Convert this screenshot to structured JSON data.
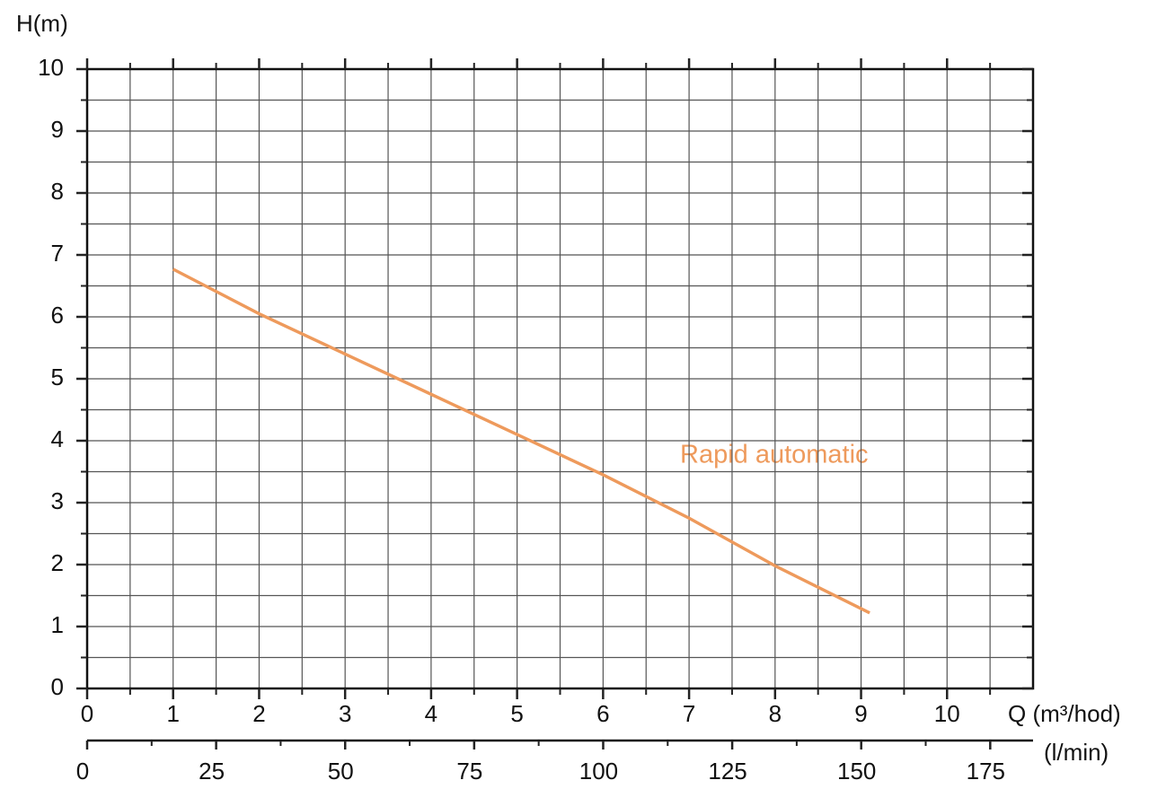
{
  "chart_data": {
    "type": "line",
    "ylabel": "H(m)",
    "xlabel": "Q (m³/hod)",
    "x2label": "(l/min)",
    "annotation": "Rapid automatic",
    "xlim": [
      0,
      11
    ],
    "xticks": [
      0,
      1,
      2,
      3,
      4,
      5,
      6,
      7,
      8,
      9,
      10
    ],
    "xminorticks": [
      0.5,
      1.5,
      2.5,
      3.5,
      4.5,
      5.5,
      6.5,
      7.5,
      8.5,
      9.5,
      10.5
    ],
    "ylim": [
      0,
      10
    ],
    "yticks": [
      0,
      1,
      2,
      3,
      4,
      5,
      6,
      7,
      8,
      9,
      10
    ],
    "yminorticks": [
      0.5,
      1.5,
      2.5,
      3.5,
      4.5,
      5.5,
      6.5,
      7.5,
      8.5,
      9.5
    ],
    "x2lim": [
      0,
      183.3
    ],
    "x2ticks": [
      0,
      25,
      50,
      75,
      100,
      125,
      150,
      175
    ],
    "x2minorticks": [
      12.5,
      37.5,
      62.5,
      87.5,
      112.5,
      137.5,
      162.5
    ],
    "grid": true,
    "series": [
      {
        "name": "Rapid automatic",
        "color": "#ee9a5c",
        "x": [
          1,
          2,
          3,
          4,
          5,
          6,
          7,
          8,
          9.1
        ],
        "values": [
          6.77,
          6.05,
          5.4,
          4.75,
          4.1,
          3.45,
          2.75,
          1.98,
          1.22
        ]
      }
    ]
  }
}
